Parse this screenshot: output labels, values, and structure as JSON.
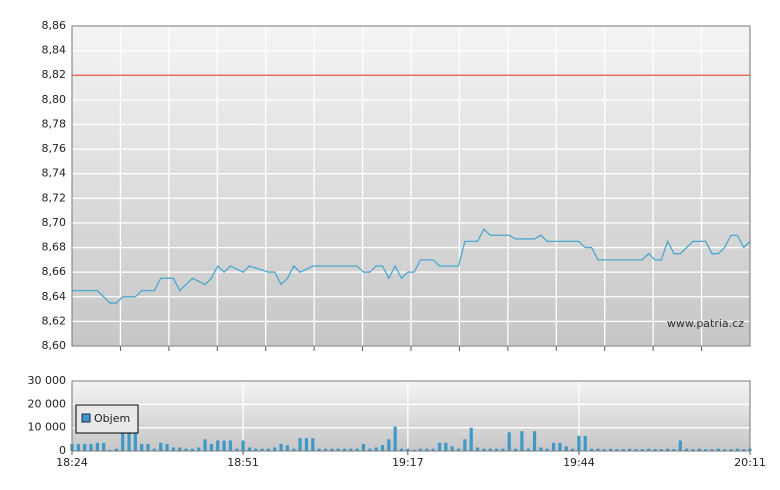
{
  "chart_data": [
    {
      "type": "line",
      "x": [
        "18:24",
        "18:28",
        "18:30",
        "18:31",
        "18:32",
        "18:34",
        "18:35",
        "18:37",
        "18:38",
        "18:40",
        "18:41",
        "18:42",
        "18:43",
        "18:45",
        "18:46",
        "18:47",
        "18:48",
        "18:49",
        "18:51",
        "18:52",
        "18:55",
        "18:56",
        "18:57",
        "18:58",
        "18:59",
        "19:00",
        "19:02",
        "19:09",
        "19:10",
        "19:11",
        "19:12",
        "19:13",
        "19:14",
        "19:15",
        "19:16",
        "19:17",
        "19:18",
        "19:19",
        "19:21",
        "19:22",
        "19:25",
        "19:26",
        "19:28",
        "19:29",
        "19:30",
        "19:33",
        "19:34",
        "19:37",
        "19:38",
        "19:39",
        "19:44",
        "19:45",
        "19:46",
        "19:47",
        "19:54",
        "19:55",
        "19:56",
        "19:57",
        "19:58",
        "19:59",
        "20:00",
        "20:02",
        "20:04",
        "20:05",
        "20:06",
        "20:07",
        "20:08",
        "20:09",
        "20:10",
        "20:11"
      ],
      "series": [
        {
          "color": "#4ba8d0",
          "values": [
            8.645,
            8.645,
            8.635,
            8.635,
            8.64,
            8.64,
            8.645,
            8.645,
            8.655,
            8.655,
            8.645,
            8.65,
            8.655,
            8.65,
            8.655,
            8.665,
            8.66,
            8.665,
            8.66,
            8.665,
            8.66,
            8.66,
            8.65,
            8.655,
            8.665,
            8.66,
            8.665,
            8.665,
            8.66,
            8.66,
            8.665,
            8.665,
            8.655,
            8.665,
            8.655,
            8.66,
            8.66,
            8.67,
            8.67,
            8.665,
            8.665,
            8.685,
            8.685,
            8.695,
            8.69,
            8.69,
            8.687,
            8.687,
            8.69,
            8.685,
            8.685,
            8.68,
            8.68,
            8.67,
            8.67,
            8.675,
            8.67,
            8.67,
            8.685,
            8.675,
            8.675,
            8.685,
            8.685,
            8.675,
            8.675,
            8.68,
            8.69,
            8.69,
            8.68,
            8.685
          ]
        }
      ],
      "xlim": [
        "18:24",
        "20:11"
      ],
      "ylim": [
        8.6,
        8.86
      ],
      "yticks": [
        {
          "value": 8.6,
          "label": "8,60"
        },
        {
          "value": 8.62,
          "label": "8,62"
        },
        {
          "value": 8.64,
          "label": "8,64"
        },
        {
          "value": 8.66,
          "label": "8,66"
        },
        {
          "value": 8.68,
          "label": "8,68"
        },
        {
          "value": 8.7,
          "label": "8,70"
        },
        {
          "value": 8.72,
          "label": "8,72"
        },
        {
          "value": 8.74,
          "label": "8,74"
        },
        {
          "value": 8.76,
          "label": "8,76"
        },
        {
          "value": 8.78,
          "label": "8,78"
        },
        {
          "value": 8.8,
          "label": "8,80"
        },
        {
          "value": 8.82,
          "label": "8,82"
        },
        {
          "value": 8.84,
          "label": "8,84"
        },
        {
          "value": 8.86,
          "label": "8,86"
        }
      ],
      "reference_line": {
        "value": 8.82,
        "color": "#e05a48"
      },
      "annotation": "www.patria.cz",
      "grid": true
    },
    {
      "type": "bar",
      "x": [
        "18:24",
        "18:25",
        "18:26",
        "18:27",
        "18:28",
        "18:29",
        "18:30",
        "18:31",
        "18:32",
        "18:33",
        "18:34",
        "18:35",
        "18:36",
        "18:37",
        "18:38",
        "18:39",
        "18:40",
        "18:41",
        "18:42",
        "18:43",
        "18:44",
        "18:45",
        "18:46",
        "18:47",
        "18:48",
        "18:49",
        "18:50",
        "18:51",
        "18:52",
        "18:53",
        "18:54",
        "18:55",
        "18:56",
        "18:57",
        "18:58",
        "18:59",
        "19:00",
        "19:01",
        "19:02",
        "19:03",
        "19:04",
        "19:05",
        "19:06",
        "19:07",
        "19:08",
        "19:09",
        "19:10",
        "19:11",
        "19:12",
        "19:13",
        "19:14",
        "19:15",
        "19:16",
        "19:17",
        "19:18",
        "19:19",
        "19:20",
        "19:21",
        "19:22",
        "19:23",
        "19:24",
        "19:25",
        "19:26",
        "19:27",
        "19:28",
        "19:29",
        "19:30",
        "19:31",
        "19:32",
        "19:33",
        "19:34",
        "19:35",
        "19:36",
        "19:37",
        "19:38",
        "19:39",
        "19:40",
        "19:41",
        "19:42",
        "19:43",
        "19:44",
        "19:45",
        "19:46",
        "19:47",
        "19:48",
        "19:49",
        "19:50",
        "19:51",
        "19:52",
        "19:53",
        "19:54",
        "19:55",
        "19:56",
        "19:57",
        "19:58",
        "19:59",
        "20:00",
        "20:01",
        "20:02",
        "20:03",
        "20:04",
        "20:05",
        "20:06",
        "20:07",
        "20:08",
        "20:09",
        "20:10",
        "20:11"
      ],
      "series": [
        {
          "name": "Objem",
          "color": "#3d9ac8",
          "values": [
            3000,
            3000,
            3000,
            3000,
            3500,
            3500,
            500,
            1000,
            19000,
            19000,
            19000,
            3000,
            3000,
            1000,
            3500,
            3000,
            1500,
            1500,
            1000,
            1000,
            1500,
            5000,
            3000,
            4500,
            4500,
            4500,
            1000,
            4500,
            1500,
            1000,
            1000,
            1000,
            1500,
            3000,
            2500,
            1000,
            5500,
            5500,
            5500,
            1000,
            1000,
            1000,
            1000,
            1000,
            1000,
            1000,
            3000,
            1000,
            1500,
            2500,
            5000,
            10500,
            1000,
            1000,
            500,
            1000,
            1000,
            1000,
            3500,
            3500,
            2000,
            1000,
            5000,
            10000,
            1500,
            1000,
            1000,
            1000,
            1000,
            8000,
            1000,
            8500,
            1000,
            8500,
            1500,
            1000,
            3500,
            3500,
            2000,
            1000,
            6500,
            6500,
            1000,
            1000,
            800,
            1000,
            800,
            800,
            1000,
            800,
            800,
            1000,
            800,
            800,
            1000,
            800,
            4500,
            1000,
            800,
            1000,
            800,
            800,
            1000,
            800,
            800,
            1000,
            800,
            1000
          ]
        }
      ],
      "xlim": [
        "18:24",
        "20:11"
      ],
      "xticks": [
        "18:24",
        "18:51",
        "19:17",
        "19:44",
        "20:11"
      ],
      "ylim": [
        0,
        30000
      ],
      "yticks": [
        0,
        {
          "value": 10000,
          "label": "10 000"
        },
        {
          "value": 20000,
          "label": "20 000"
        },
        {
          "value": 30000,
          "label": "30 000"
        }
      ],
      "legend": "top-left",
      "grid": true
    }
  ]
}
